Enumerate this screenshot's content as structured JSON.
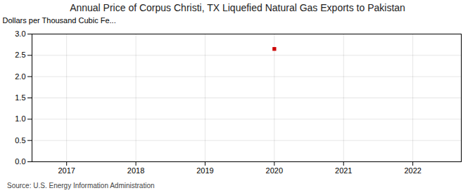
{
  "chart_data": {
    "type": "scatter",
    "title": "Annual Price of Corpus Christi, TX Liquefied Natural Gas Exports to Pakistan",
    "ylabel": "Dollars per Thousand Cubic Fe...",
    "source": "Source: U.S. Energy Information Administration",
    "x": [
      2020
    ],
    "values": [
      2.65
    ],
    "color": "#cc0000",
    "marker": "square",
    "xlim": [
      2016.5,
      2022.7
    ],
    "xticks": [
      2017,
      2018,
      2019,
      2020,
      2021,
      2022
    ],
    "ylim": [
      0.0,
      3.0
    ],
    "yticks": [
      {
        "value": 0,
        "label": "0.0"
      },
      0.5,
      {
        "value": 1,
        "label": "1.0"
      },
      1.5,
      {
        "value": 2,
        "label": "2.0"
      },
      2.5,
      {
        "value": 3,
        "label": "3.0"
      }
    ],
    "grid": true
  }
}
